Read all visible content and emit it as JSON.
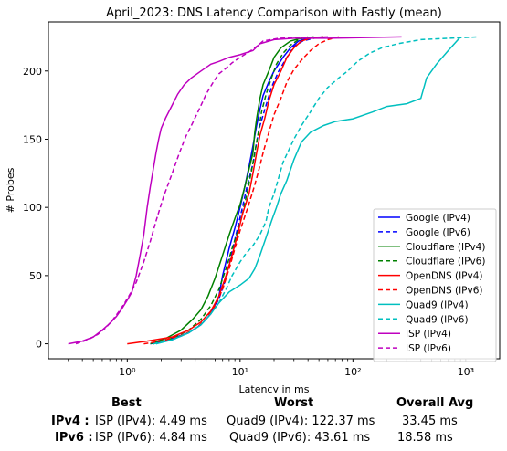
{
  "chart_data": {
    "type": "line",
    "title": "April_2023: DNS Latency Comparison with Fastly (mean)",
    "xlabel": "Latency in ms",
    "ylabel": "# Probes",
    "xscale": "log",
    "xlim": [
      0.2,
      2000
    ],
    "ylim": [
      -11,
      236
    ],
    "xticks": [
      1,
      10,
      100,
      1000
    ],
    "xtick_labels": [
      "10⁰",
      "10¹",
      "10²",
      "10³"
    ],
    "yticks": [
      0,
      50,
      100,
      150,
      200
    ],
    "grid": false,
    "legend": "lower-right",
    "series": [
      {
        "name": "Google (IPv4)",
        "color": "#0000ff",
        "dash": false,
        "points": [
          [
            1.8,
            0
          ],
          [
            2.5,
            4
          ],
          [
            3.5,
            8
          ],
          [
            4.5,
            14
          ],
          [
            5.5,
            22
          ],
          [
            6.5,
            35
          ],
          [
            7,
            50
          ],
          [
            8,
            70
          ],
          [
            9,
            85
          ],
          [
            10,
            100
          ],
          [
            11,
            115
          ],
          [
            12,
            130
          ],
          [
            13,
            145
          ],
          [
            14,
            160
          ],
          [
            15,
            172
          ],
          [
            16,
            182
          ],
          [
            18,
            192
          ],
          [
            20,
            200
          ],
          [
            24,
            210
          ],
          [
            28,
            217
          ],
          [
            33,
            222
          ],
          [
            40,
            224
          ],
          [
            55,
            225
          ]
        ]
      },
      {
        "name": "Google (IPv6)",
        "color": "#0000ff",
        "dash": true,
        "points": [
          [
            1.6,
            0
          ],
          [
            2.5,
            3
          ],
          [
            3.5,
            8
          ],
          [
            4.5,
            14
          ],
          [
            5.5,
            22
          ],
          [
            6.5,
            33
          ],
          [
            7.5,
            48
          ],
          [
            8.5,
            68
          ],
          [
            9.5,
            85
          ],
          [
            10.5,
            100
          ],
          [
            11.5,
            115
          ],
          [
            13,
            132
          ],
          [
            14,
            148
          ],
          [
            15,
            160
          ],
          [
            17,
            175
          ],
          [
            19,
            188
          ],
          [
            22,
            200
          ],
          [
            26,
            210
          ],
          [
            30,
            218
          ],
          [
            36,
            222
          ],
          [
            45,
            224
          ],
          [
            60,
            225
          ]
        ]
      },
      {
        "name": "Cloudflare (IPv4)",
        "color": "#008000",
        "dash": false,
        "points": [
          [
            1.6,
            0
          ],
          [
            2.2,
            4
          ],
          [
            3,
            10
          ],
          [
            3.8,
            18
          ],
          [
            4.5,
            25
          ],
          [
            5.2,
            35
          ],
          [
            6,
            48
          ],
          [
            7,
            65
          ],
          [
            8,
            80
          ],
          [
            9,
            92
          ],
          [
            10,
            102
          ],
          [
            11,
            115
          ],
          [
            12,
            128
          ],
          [
            13,
            140
          ],
          [
            13.5,
            155
          ],
          [
            14,
            165
          ],
          [
            15,
            180
          ],
          [
            16,
            190
          ],
          [
            18,
            200
          ],
          [
            20,
            210
          ],
          [
            23,
            217
          ],
          [
            28,
            222
          ],
          [
            35,
            224
          ],
          [
            45,
            225
          ]
        ]
      },
      {
        "name": "Cloudflare (IPv6)",
        "color": "#008000",
        "dash": true,
        "points": [
          [
            1.7,
            0
          ],
          [
            2.5,
            4
          ],
          [
            3.5,
            10
          ],
          [
            4.5,
            18
          ],
          [
            5.5,
            28
          ],
          [
            6.5,
            40
          ],
          [
            7.5,
            55
          ],
          [
            8.5,
            70
          ],
          [
            9.5,
            82
          ],
          [
            10.5,
            95
          ],
          [
            11.5,
            110
          ],
          [
            12.5,
            125
          ],
          [
            13.5,
            140
          ],
          [
            14.5,
            155
          ],
          [
            15.5,
            170
          ],
          [
            17,
            183
          ],
          [
            19,
            195
          ],
          [
            21,
            205
          ],
          [
            24,
            213
          ],
          [
            28,
            219
          ],
          [
            33,
            223
          ],
          [
            40,
            225
          ]
        ]
      },
      {
        "name": "OpenDNS (IPv4)",
        "color": "#ff0000",
        "dash": false,
        "points": [
          [
            1,
            0
          ],
          [
            1.5,
            2
          ],
          [
            2.5,
            5
          ],
          [
            3.5,
            10
          ],
          [
            4.5,
            16
          ],
          [
            5.5,
            24
          ],
          [
            6.5,
            35
          ],
          [
            7.5,
            50
          ],
          [
            8.5,
            65
          ],
          [
            9.5,
            80
          ],
          [
            10.5,
            95
          ],
          [
            12,
            110
          ],
          [
            13,
            125
          ],
          [
            14,
            140
          ],
          [
            15,
            153
          ],
          [
            16.5,
            165
          ],
          [
            18,
            178
          ],
          [
            20,
            190
          ],
          [
            23,
            200
          ],
          [
            26,
            210
          ],
          [
            30,
            217
          ],
          [
            35,
            222
          ],
          [
            42,
            224
          ],
          [
            55,
            225
          ]
        ]
      },
      {
        "name": "OpenDNS (IPv6)",
        "color": "#ff0000",
        "dash": true,
        "points": [
          [
            1.4,
            0
          ],
          [
            2,
            2
          ],
          [
            3,
            6
          ],
          [
            4,
            11
          ],
          [
            5,
            18
          ],
          [
            6,
            28
          ],
          [
            7,
            40
          ],
          [
            8,
            55
          ],
          [
            9,
            70
          ],
          [
            10,
            83
          ],
          [
            11.5,
            98
          ],
          [
            13,
            112
          ],
          [
            14.5,
            126
          ],
          [
            16,
            140
          ],
          [
            18,
            155
          ],
          [
            20,
            168
          ],
          [
            23,
            180
          ],
          [
            26,
            192
          ],
          [
            30,
            201
          ],
          [
            35,
            208
          ],
          [
            42,
            215
          ],
          [
            50,
            220
          ],
          [
            60,
            223
          ],
          [
            75,
            225
          ]
        ]
      },
      {
        "name": "Quad9 (IPv4)",
        "color": "#00bfbf",
        "dash": false,
        "points": [
          [
            1.8,
            0
          ],
          [
            2.5,
            3
          ],
          [
            3.5,
            8
          ],
          [
            4.5,
            14
          ],
          [
            5.5,
            22
          ],
          [
            6.5,
            30
          ],
          [
            8,
            38
          ],
          [
            10,
            43
          ],
          [
            12,
            48
          ],
          [
            13.5,
            55
          ],
          [
            15,
            65
          ],
          [
            17,
            78
          ],
          [
            19,
            90
          ],
          [
            21,
            100
          ],
          [
            23,
            110
          ],
          [
            26,
            120
          ],
          [
            30,
            135
          ],
          [
            35,
            148
          ],
          [
            42,
            155
          ],
          [
            55,
            160
          ],
          [
            70,
            163
          ],
          [
            100,
            165
          ],
          [
            150,
            170
          ],
          [
            200,
            174
          ],
          [
            300,
            176
          ],
          [
            400,
            180
          ],
          [
            450,
            195
          ],
          [
            550,
            205
          ],
          [
            700,
            215
          ],
          [
            900,
            225
          ]
        ]
      },
      {
        "name": "Quad9 (IPv6)",
        "color": "#00bfbf",
        "dash": true,
        "points": [
          [
            1.7,
            0
          ],
          [
            2.5,
            3
          ],
          [
            3.5,
            8
          ],
          [
            4.5,
            14
          ],
          [
            5.5,
            22
          ],
          [
            6.5,
            30
          ],
          [
            7.5,
            40
          ],
          [
            8.5,
            50
          ],
          [
            10,
            60
          ],
          [
            11,
            65
          ],
          [
            13,
            72
          ],
          [
            15,
            80
          ],
          [
            17,
            90
          ],
          [
            18,
            100
          ],
          [
            20,
            110
          ],
          [
            22,
            122
          ],
          [
            24,
            133
          ],
          [
            27,
            142
          ],
          [
            30,
            150
          ],
          [
            35,
            160
          ],
          [
            42,
            170
          ],
          [
            50,
            180
          ],
          [
            60,
            188
          ],
          [
            75,
            195
          ],
          [
            90,
            200
          ],
          [
            110,
            207
          ],
          [
            140,
            213
          ],
          [
            180,
            217
          ],
          [
            250,
            220
          ],
          [
            400,
            223
          ],
          [
            700,
            224
          ],
          [
            1300,
            225
          ]
        ]
      },
      {
        "name": "ISP (IPv4)",
        "color": "#bf00bf",
        "dash": false,
        "points": [
          [
            0.3,
            0
          ],
          [
            0.4,
            2
          ],
          [
            0.5,
            5
          ],
          [
            0.6,
            10
          ],
          [
            0.7,
            15
          ],
          [
            0.8,
            20
          ],
          [
            0.9,
            26
          ],
          [
            1,
            32
          ],
          [
            1.1,
            38
          ],
          [
            1.2,
            50
          ],
          [
            1.3,
            65
          ],
          [
            1.4,
            80
          ],
          [
            1.5,
            100
          ],
          [
            1.6,
            115
          ],
          [
            1.7,
            128
          ],
          [
            1.8,
            140
          ],
          [
            1.9,
            150
          ],
          [
            2,
            158
          ],
          [
            2.2,
            166
          ],
          [
            2.5,
            175
          ],
          [
            2.8,
            183
          ],
          [
            3.2,
            190
          ],
          [
            3.7,
            195
          ],
          [
            4.5,
            200
          ],
          [
            5.5,
            205
          ],
          [
            6.5,
            207
          ],
          [
            8,
            210
          ],
          [
            10,
            212
          ],
          [
            13,
            215
          ],
          [
            15,
            220
          ],
          [
            20,
            223
          ],
          [
            30,
            224
          ],
          [
            60,
            224
          ],
          [
            270,
            225
          ]
        ]
      },
      {
        "name": "ISP (IPv6)",
        "color": "#bf00bf",
        "dash": true,
        "points": [
          [
            0.35,
            0
          ],
          [
            0.45,
            3
          ],
          [
            0.55,
            7
          ],
          [
            0.65,
            12
          ],
          [
            0.75,
            18
          ],
          [
            0.85,
            24
          ],
          [
            0.95,
            30
          ],
          [
            1.05,
            36
          ],
          [
            1.2,
            45
          ],
          [
            1.4,
            60
          ],
          [
            1.6,
            75
          ],
          [
            1.8,
            90
          ],
          [
            2.1,
            108
          ],
          [
            2.5,
            125
          ],
          [
            2.9,
            140
          ],
          [
            3.3,
            152
          ],
          [
            3.8,
            162
          ],
          [
            4.4,
            173
          ],
          [
            5,
            183
          ],
          [
            5.8,
            192
          ],
          [
            6.5,
            198
          ],
          [
            7.5,
            202
          ],
          [
            8.5,
            206
          ],
          [
            10,
            210
          ],
          [
            12,
            214
          ],
          [
            14,
            218
          ],
          [
            16,
            222
          ],
          [
            22,
            224
          ],
          [
            60,
            225
          ]
        ]
      }
    ]
  },
  "summary": {
    "headers": {
      "best": "Best",
      "worst": "Worst",
      "avg": "Overall Avg"
    },
    "rows": [
      {
        "label": "IPv4 :",
        "best": "ISP (IPv4): 4.49 ms",
        "worst": "Quad9 (IPv4): 122.37 ms",
        "avg": "33.45 ms"
      },
      {
        "label": "IPv6 :",
        "best": "ISP (IPv6): 4.84 ms",
        "worst": "Quad9 (IPv6): 43.61 ms",
        "avg": "18.58 ms"
      }
    ]
  }
}
